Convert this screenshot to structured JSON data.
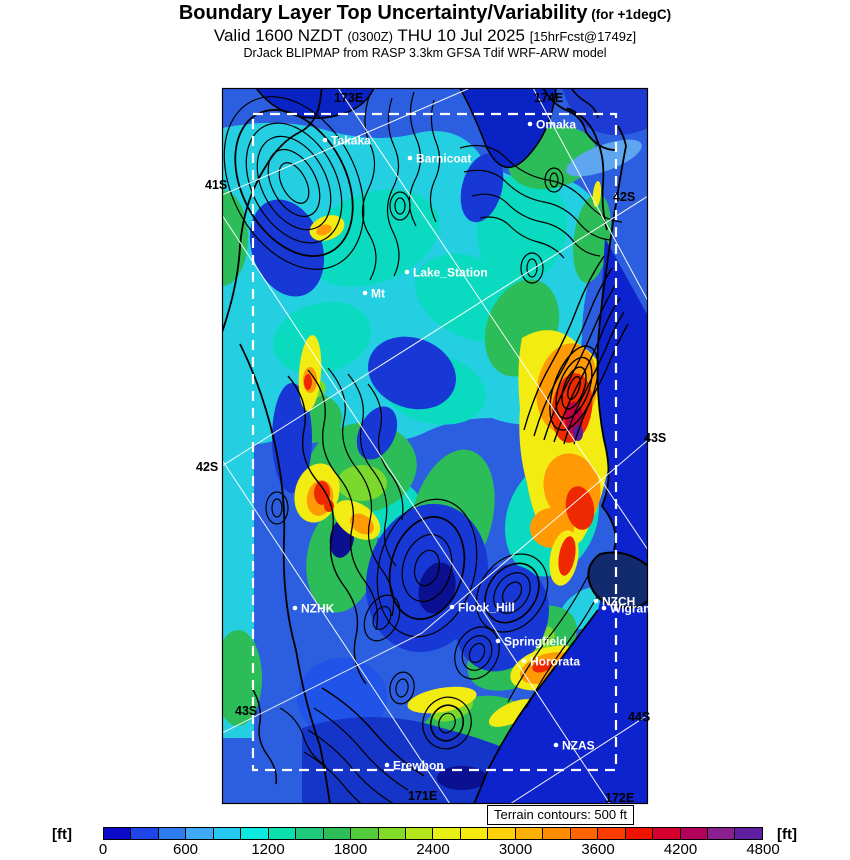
{
  "header": {
    "title_main": "Boundary Layer Top Uncertainty/Variability",
    "title_qualifier": " (for +1degC)",
    "valid_prefix": "Valid 1600 NZDT ",
    "valid_utc": "(0300Z)",
    "valid_date": " THU 10 Jul 2025 ",
    "valid_fcst": "[15hrFcst@1749z]",
    "model_line": "DrJack BLIPMAP from RASP 3.3km GFSA Tdif WRF-ARW model"
  },
  "map": {
    "terrain_note": "Terrain contours: 500 ft",
    "sites": [
      {
        "id": "takaka",
        "label": "Takaka"
      },
      {
        "id": "barnicoat",
        "label": "Barnicoat"
      },
      {
        "id": "omaka",
        "label": "Omaka"
      },
      {
        "id": "lake-station",
        "label": "Lake_Station"
      },
      {
        "id": "mt",
        "label": "Mt"
      },
      {
        "id": "nzhk",
        "label": "NZHK"
      },
      {
        "id": "flock-hill",
        "label": "Flock_Hill"
      },
      {
        "id": "springfield",
        "label": "Springfield"
      },
      {
        "id": "hororata",
        "label": "Hororata"
      },
      {
        "id": "nzch",
        "label": "NZCH"
      },
      {
        "id": "wigram",
        "label": "Wigram"
      },
      {
        "id": "nzas",
        "label": "NZAS"
      },
      {
        "id": "erewhon",
        "label": "Erewhon"
      }
    ],
    "graticule_labels": [
      {
        "id": "lat-41s",
        "text": "41S"
      },
      {
        "id": "lat-42s-left",
        "text": "42S"
      },
      {
        "id": "lat-43s-left",
        "text": "43S"
      },
      {
        "id": "lat-42s-right",
        "text": "42S"
      },
      {
        "id": "lat-43s-right",
        "text": "43S"
      },
      {
        "id": "lat-44s-right",
        "text": "44S"
      },
      {
        "id": "lon-173e",
        "text": "173E"
      },
      {
        "id": "lon-174e",
        "text": "174E"
      },
      {
        "id": "lon-171e",
        "text": "171E"
      },
      {
        "id": "lon-172e",
        "text": "172E"
      }
    ]
  },
  "colorbar": {
    "unit_left": "[ft]",
    "unit_right": "[ft]",
    "min_ft": 0,
    "max_ft": 4800,
    "step_ft": 200,
    "ticks": [
      "0",
      "600",
      "1200",
      "1800",
      "2400",
      "3000",
      "3600",
      "4200",
      "4800"
    ],
    "colors": [
      "#0a0ac8",
      "#1e46e6",
      "#2e7df0",
      "#3fa9f5",
      "#26c9f0",
      "#0ce9e0",
      "#0bdfae",
      "#1ecb7b",
      "#2ebe57",
      "#52cc3c",
      "#84da28",
      "#b5e51c",
      "#e6f014",
      "#f7ea0f",
      "#ffd10a",
      "#ffaf05",
      "#ff8c00",
      "#ff6400",
      "#fb3c00",
      "#ef1400",
      "#d6002e",
      "#b3005c",
      "#8a1f8f",
      "#5f1fa0"
    ]
  }
}
